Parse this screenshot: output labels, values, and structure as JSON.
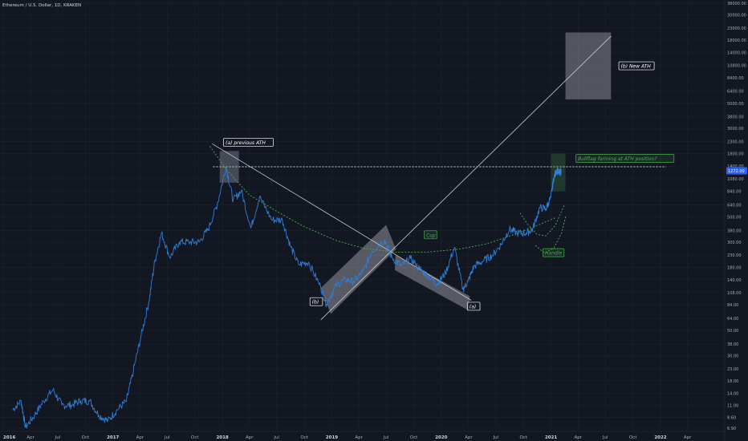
{
  "symbol_title": "Ethereum / U.S. Dollar, 1D, KRAKEN",
  "price_badge": "1272.00",
  "colors": {
    "background": "#131722",
    "price_line": "#2f7fd6",
    "grid": "#1e2230",
    "label_green": "#4caf50",
    "badge": "#2962ff"
  },
  "chart_data": {
    "type": "line",
    "y_scale": "log",
    "ylim": [
      6.9,
      38000
    ],
    "x_range": [
      "2016-01-01",
      "2022-05-01"
    ],
    "xlabel": "",
    "ylabel": "",
    "grid": true,
    "y_ticks": [
      6.9,
      8.6,
      11,
      14,
      18,
      23,
      30,
      38,
      50,
      64,
      84,
      108,
      140,
      180,
      230,
      300,
      380,
      500,
      640,
      840,
      1080,
      1400,
      1800,
      2300,
      3000,
      3800,
      5000,
      6400,
      8400,
      10800,
      14000,
      18000,
      23000,
      30000,
      38000
    ],
    "y_tick_labels": [
      "6.90",
      "8.60",
      "11.00",
      "14.00",
      "18.00",
      "23.00",
      "30.00",
      "38.00",
      "50.00",
      "64.00",
      "84.00",
      "108.00",
      "140.00",
      "180.00",
      "230.00",
      "300.00",
      "380.00",
      "500.00",
      "640.00",
      "840.00",
      "1080.00",
      "1400.00",
      "1800.00",
      "2300.00",
      "3000.00",
      "3800.00",
      "5000.00",
      "6400.00",
      "8400.00",
      "10800.00",
      "14000.00",
      "18000.00",
      "23000.00",
      "30000.00",
      "38000.00"
    ],
    "x_ticks": [
      {
        "date": "2016-01-01",
        "label": "2016",
        "year": true
      },
      {
        "date": "2016-04-01",
        "label": "Apr",
        "year": false
      },
      {
        "date": "2016-07-01",
        "label": "Jul",
        "year": false
      },
      {
        "date": "2016-10-01",
        "label": "Oct",
        "year": false
      },
      {
        "date": "2017-01-01",
        "label": "2017",
        "year": true
      },
      {
        "date": "2017-04-01",
        "label": "Apr",
        "year": false
      },
      {
        "date": "2017-07-01",
        "label": "Jul",
        "year": false
      },
      {
        "date": "2017-10-01",
        "label": "Oct",
        "year": false
      },
      {
        "date": "2018-01-01",
        "label": "2018",
        "year": true
      },
      {
        "date": "2018-04-01",
        "label": "Apr",
        "year": false
      },
      {
        "date": "2018-07-01",
        "label": "Jul",
        "year": false
      },
      {
        "date": "2018-10-01",
        "label": "Oct",
        "year": false
      },
      {
        "date": "2019-01-01",
        "label": "2019",
        "year": true
      },
      {
        "date": "2019-04-01",
        "label": "Apr",
        "year": false
      },
      {
        "date": "2019-07-01",
        "label": "Jul",
        "year": false
      },
      {
        "date": "2019-10-01",
        "label": "Oct",
        "year": false
      },
      {
        "date": "2020-01-01",
        "label": "2020",
        "year": true
      },
      {
        "date": "2020-04-01",
        "label": "Apr",
        "year": false
      },
      {
        "date": "2020-07-01",
        "label": "Jul",
        "year": false
      },
      {
        "date": "2020-10-01",
        "label": "Oct",
        "year": false
      },
      {
        "date": "2021-01-01",
        "label": "2021",
        "year": true
      },
      {
        "date": "2021-04-01",
        "label": "Apr",
        "year": false
      },
      {
        "date": "2021-07-01",
        "label": "Jul",
        "year": false
      },
      {
        "date": "2021-10-01",
        "label": "Oct",
        "year": false
      },
      {
        "date": "2022-01-01",
        "label": "2022",
        "year": true
      },
      {
        "date": "2022-04-01",
        "label": "Apr",
        "year": false
      }
    ],
    "series": [
      {
        "x": [
          "2016-02-01",
          "2016-03-01",
          "2016-03-15",
          "2016-04-15",
          "2016-05-15",
          "2016-06-15",
          "2016-07-15",
          "2016-08-15",
          "2016-09-15",
          "2016-10-15",
          "2016-11-15",
          "2016-12-15",
          "2017-01-15",
          "2017-02-15",
          "2017-03-10",
          "2017-04-05",
          "2017-05-01",
          "2017-05-20",
          "2017-06-12",
          "2017-07-10",
          "2017-08-10",
          "2017-09-15",
          "2017-10-15",
          "2017-11-15",
          "2017-12-15",
          "2018-01-13",
          "2018-02-06",
          "2018-03-05",
          "2018-04-06",
          "2018-05-05",
          "2018-06-15",
          "2018-07-20",
          "2018-08-15",
          "2018-09-12",
          "2018-10-15",
          "2018-11-25",
          "2018-12-14",
          "2019-01-15",
          "2019-02-15",
          "2019-03-15",
          "2019-04-15",
          "2019-05-15",
          "2019-06-26",
          "2019-07-20",
          "2019-08-20",
          "2019-09-20",
          "2019-10-20",
          "2019-11-20",
          "2019-12-18",
          "2020-01-15",
          "2020-02-14",
          "2020-03-13",
          "2020-03-30",
          "2020-04-20",
          "2020-05-20",
          "2020-06-20",
          "2020-07-20",
          "2020-08-15",
          "2020-09-10",
          "2020-10-10",
          "2020-11-01",
          "2020-11-24",
          "2020-12-15",
          "2020-12-31",
          "2021-01-10",
          "2021-01-20",
          "2021-01-28",
          "2021-02-04"
        ],
        "y": [
          10,
          12,
          7,
          9,
          12,
          15,
          11,
          11,
          12,
          12,
          9,
          8,
          10,
          12,
          22,
          45,
          90,
          200,
          360,
          220,
          300,
          300,
          300,
          390,
          650,
          1380,
          700,
          850,
          400,
          750,
          470,
          470,
          280,
          190,
          200,
          120,
          85,
          125,
          140,
          135,
          165,
          250,
          315,
          220,
          185,
          215,
          175,
          150,
          128,
          160,
          270,
          115,
          135,
          185,
          205,
          230,
          290,
          390,
          360,
          360,
          390,
          600,
          590,
          740,
          1100,
          1300,
          1200,
          1272
        ]
      }
    ],
    "annotations": [
      {
        "text": "(a) previous ATH",
        "style": "white-box"
      },
      {
        "text": "(b)",
        "style": "white-box"
      },
      {
        "text": "(a)",
        "style": "white-box"
      },
      {
        "text": "(b) New ATH",
        "style": "white-box"
      },
      {
        "text": "Cup",
        "style": "green-box"
      },
      {
        "text": "Handle",
        "style": "green-box"
      },
      {
        "text": "Bullflag forming at ATH position?",
        "style": "green-box"
      }
    ],
    "previous_ath_level": 1380
  }
}
